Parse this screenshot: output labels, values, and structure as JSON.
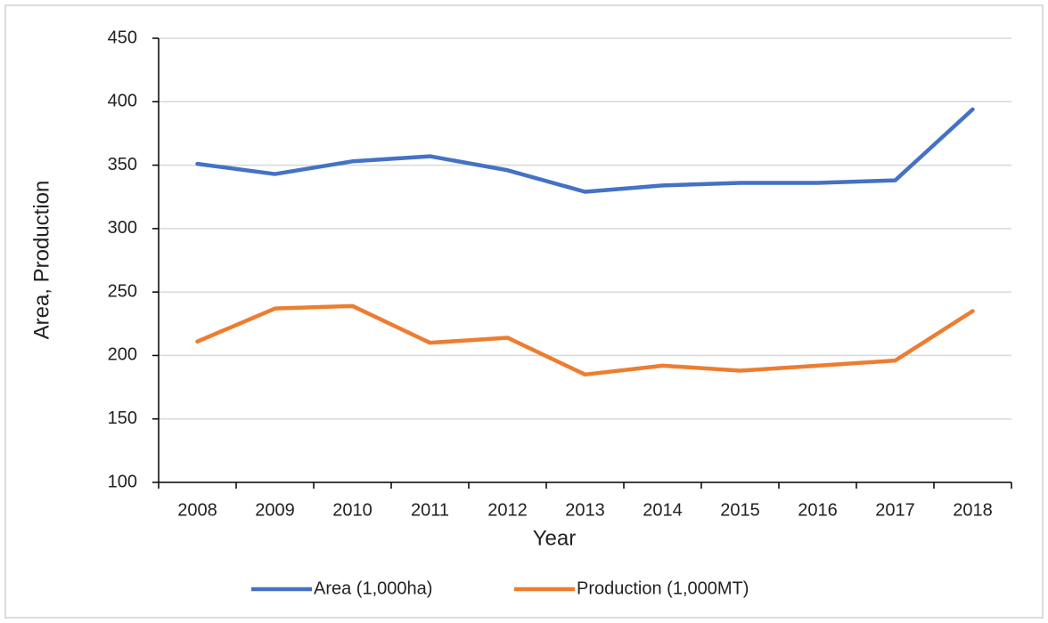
{
  "chart_data": {
    "type": "line",
    "categories": [
      "2008",
      "2009",
      "2010",
      "2011",
      "2012",
      "2013",
      "2014",
      "2015",
      "2016",
      "2017",
      "2018"
    ],
    "series": [
      {
        "name": "Area (1,000ha)",
        "color": "#4472c4",
        "values": [
          351,
          343,
          353,
          357,
          346,
          329,
          334,
          336,
          336,
          338,
          394
        ]
      },
      {
        "name": "Production (1,000MT)",
        "color": "#ed7d31",
        "values": [
          211,
          237,
          239,
          210,
          214,
          185,
          192,
          188,
          192,
          196,
          235
        ]
      }
    ],
    "xlabel": "Year",
    "ylabel": "Area, Production",
    "ylim": [
      100,
      450
    ],
    "yticks": [
      100,
      150,
      200,
      250,
      300,
      350,
      400,
      450
    ],
    "grid": true,
    "legend": "bottom"
  }
}
